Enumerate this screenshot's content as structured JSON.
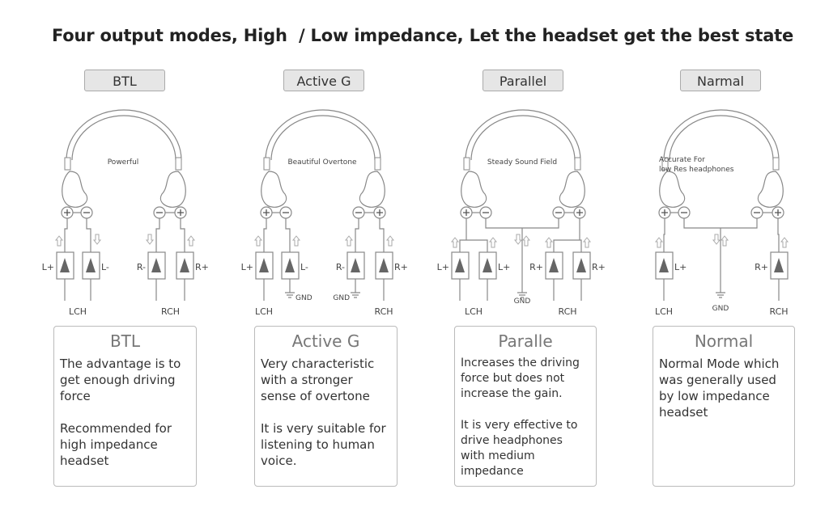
{
  "headline": "Four output modes, High  / Low impedance, Let the headset get the best state",
  "colors": {
    "line": "#888888",
    "amp_fill": "#666666",
    "tag_bg": "#e6e6e6",
    "text": "#333333"
  },
  "modes": [
    {
      "tag": "BTL",
      "headband_text": [
        "Powerful"
      ],
      "amp_labels": [
        "L+",
        "L-",
        "R-",
        "R+"
      ],
      "channels": [
        "LCH",
        "RCH"
      ],
      "gnd": [],
      "title": "BTL",
      "desc": [
        "The advantage is to get enough driving force",
        "Recommended for high impedance headset"
      ]
    },
    {
      "tag": "Active  G",
      "headband_text": [
        "Beautiful Overtone"
      ],
      "amp_labels": [
        "L+",
        "L-",
        "R-",
        "R+"
      ],
      "channels": [
        "LCH",
        "RCH"
      ],
      "gnd": [
        "GND",
        "GND"
      ],
      "title": "Active G",
      "desc": [
        "Very characteristic with a stronger sense of overtone",
        "It is very suitable for listening to human voice."
      ]
    },
    {
      "tag": "Parallel",
      "headband_text": [
        "Steady Sound Field"
      ],
      "amp_labels": [
        "L+",
        "L+",
        "R+",
        "R+"
      ],
      "channels": [
        "LCH",
        "RCH"
      ],
      "gnd": [
        "GND"
      ],
      "title": "Paralle",
      "desc": [
        "Increases the driving force but does not increase the gain.",
        "It is very effective to drive headphones with medium impedance"
      ]
    },
    {
      "tag": "Narmal",
      "headband_text": [
        "Accurate For",
        "low Res headphones"
      ],
      "amp_labels": [
        "L+",
        "R+"
      ],
      "channels": [
        "LCH",
        "RCH"
      ],
      "gnd": [
        "GND"
      ],
      "title": "Normal",
      "desc": [
        "Normal Mode which was generally used by low impedance headset"
      ]
    }
  ]
}
